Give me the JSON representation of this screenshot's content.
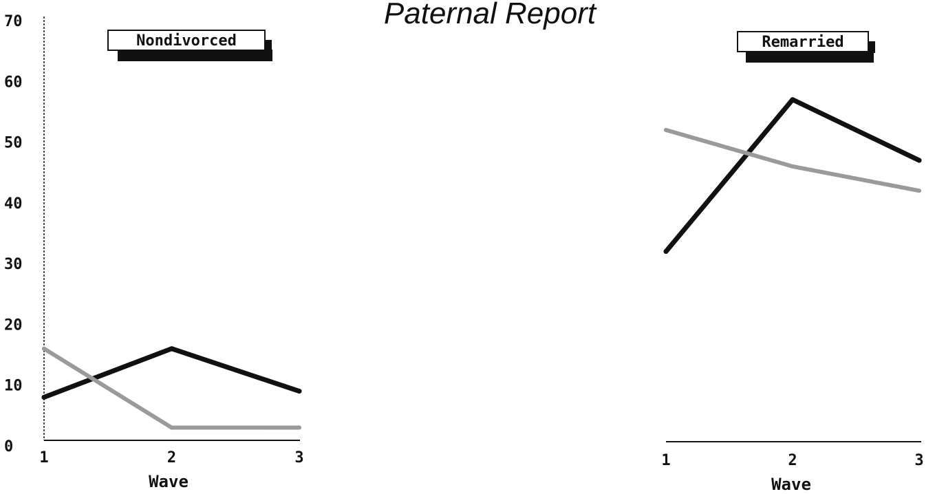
{
  "chart_data": [
    {
      "type": "line",
      "title": "Paternal Report",
      "panel_label": "Nondivorced",
      "xlabel": "Wave",
      "ylabel": "",
      "x": [
        1,
        2,
        3
      ],
      "xticks": [
        "1",
        "2",
        "3"
      ],
      "yticks": [
        "0",
        "10",
        "20",
        "30",
        "40",
        "50",
        "60",
        "70"
      ],
      "ylim": [
        0,
        70
      ],
      "series": [
        {
          "style": "solid",
          "color": "#111111",
          "values": [
            8,
            16,
            9
          ]
        },
        {
          "style": "dotted",
          "color": "#9a9a9a",
          "values": [
            16,
            3,
            3
          ]
        }
      ]
    },
    {
      "type": "line",
      "panel_label": "Remarried",
      "xlabel": "Wave",
      "ylabel": "",
      "x": [
        1,
        2,
        3
      ],
      "xticks": [
        "1",
        "2",
        "3"
      ],
      "ylim": [
        0,
        70
      ],
      "series": [
        {
          "style": "solid",
          "color": "#111111",
          "values": [
            32,
            57,
            47
          ]
        },
        {
          "style": "dotted",
          "color": "#9a9a9a",
          "values": [
            52,
            46,
            42
          ]
        }
      ]
    }
  ]
}
